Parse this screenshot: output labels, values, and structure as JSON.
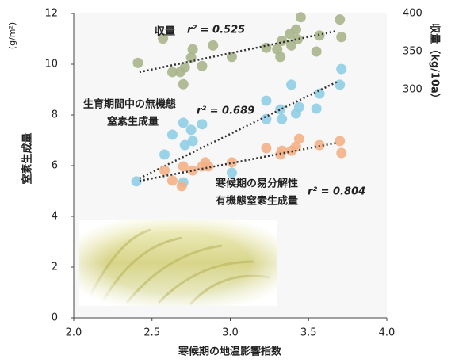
{
  "chart_data": {
    "type": "scatter",
    "xlabel": "寒候期の地温影響指数",
    "ylabel": "窒素生成量",
    "yunit": "(g/m²)",
    "y2label": "収量（kg/10a）",
    "xlim": [
      2.0,
      4.0
    ],
    "xticks": [
      {
        "value": 2.0,
        "label": "2.0"
      },
      2.5,
      {
        "value": 3.0,
        "label": "3.0"
      },
      3.5,
      {
        "value": 4.0,
        "label": "4.0"
      }
    ],
    "ylim": [
      0,
      12
    ],
    "yticks": [
      0,
      2,
      4,
      6,
      8,
      10,
      12
    ],
    "y2lim": [
      0,
      400
    ],
    "y2ticks": [
      300,
      350,
      400
    ],
    "series": [
      {
        "label_lines": [
          "収量"
        ],
        "r2": "r² = 0.525",
        "color": "#a9b58b",
        "axis": "y2",
        "x": [
          2.41,
          2.57,
          2.63,
          2.68,
          2.7,
          2.71,
          2.75,
          2.76,
          2.82,
          2.89,
          3.01,
          3.23,
          3.3,
          3.32,
          3.33,
          3.38,
          3.39,
          3.42,
          3.43,
          3.45,
          3.55,
          3.57,
          3.7,
          3.71
        ],
        "values": [
          335,
          367,
          323,
          323,
          307,
          329,
          342,
          353,
          331,
          358,
          343,
          355,
          353,
          343,
          364,
          373,
          358,
          379,
          366,
          395,
          350,
          371,
          392,
          369
        ],
        "trend": {
          "x": [
            2.42,
            3.68
          ],
          "values": [
            323,
            377
          ]
        }
      },
      {
        "label_lines": [
          "生育期間中の無機態",
          "窒素生成量"
        ],
        "r2": "r² = 0.689",
        "color": "#8fcde6",
        "x": [
          2.4,
          2.58,
          2.63,
          2.7,
          2.71,
          2.76,
          2.75,
          2.82,
          2.7,
          3.01,
          3.23,
          3.23,
          3.32,
          3.33,
          3.39,
          3.42,
          3.44,
          3.55,
          3.57,
          3.7,
          3.71
        ],
        "values": [
          5.38,
          6.44,
          7.22,
          7.69,
          6.81,
          6.97,
          7.41,
          7.63,
          5.34,
          5.72,
          8.56,
          7.84,
          8.22,
          7.84,
          9.19,
          8.06,
          8.31,
          8.25,
          8.84,
          9.19,
          9.81
        ],
        "trend": {
          "x": [
            2.42,
            3.68
          ],
          "values": [
            5.5,
            9.3
          ]
        }
      },
      {
        "label_lines": [
          "寒候期の易分解性",
          "有機態窒素生成量"
        ],
        "r2": "r² = 0.804",
        "color": "#f3b087",
        "x": [
          2.58,
          2.63,
          2.69,
          2.7,
          2.76,
          2.82,
          2.84,
          2.86,
          3.01,
          3.23,
          3.32,
          3.33,
          3.39,
          3.42,
          3.44,
          3.57,
          3.7,
          3.71
        ],
        "values": [
          5.81,
          5.41,
          5.19,
          5.97,
          5.81,
          5.97,
          6.13,
          5.97,
          6.13,
          6.69,
          6.44,
          6.59,
          6.59,
          6.75,
          7.06,
          6.81,
          6.97,
          6.5
        ],
        "trend": {
          "x": [
            2.42,
            3.68
          ],
          "values": [
            5.4,
            6.9
          ]
        }
      }
    ]
  }
}
